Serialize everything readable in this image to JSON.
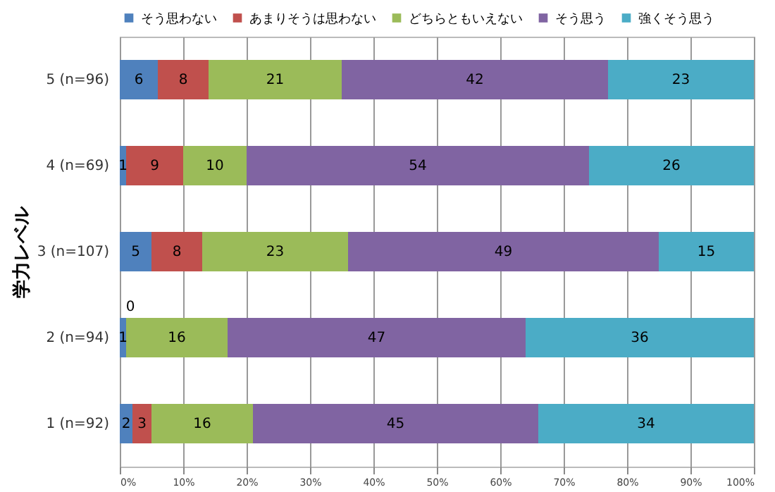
{
  "chart_data": {
    "type": "bar",
    "orientation": "horizontal",
    "stacked": true,
    "ylabel": "学力レベル",
    "categories": [
      "5 (n=96)",
      "4 (n=69)",
      "3 (n=107)",
      "2 (n=94)",
      "1 (n=92)"
    ],
    "series": [
      {
        "name": "そう思わない",
        "color": "#4f81bd",
        "values": [
          6,
          1,
          5,
          1,
          2
        ]
      },
      {
        "name": "あまりそうは思わない",
        "color": "#c0504d",
        "values": [
          8,
          9,
          8,
          0,
          3
        ],
        "value_labels": [
          "8",
          "9",
          "8",
          null,
          "3"
        ]
      },
      {
        "name": "どちらともいえない",
        "color": "#9bbb59",
        "values": [
          21,
          10,
          23,
          16,
          16
        ]
      },
      {
        "name": "そう思う",
        "color": "#8064a2",
        "values": [
          42,
          54,
          49,
          47,
          45
        ]
      },
      {
        "name": "強くそう思う",
        "color": "#4bacc6",
        "values": [
          23,
          26,
          15,
          36,
          34
        ]
      }
    ],
    "xlim": [
      0,
      100
    ],
    "xticks": [
      {
        "value": 0,
        "label": "0%"
      },
      {
        "value": 10,
        "label": "10%"
      },
      {
        "value": 20,
        "label": "20%"
      },
      {
        "value": 30,
        "label": "30%"
      },
      {
        "value": 40,
        "label": "40%"
      },
      {
        "value": 50,
        "label": "50%"
      },
      {
        "value": 60,
        "label": "60%"
      },
      {
        "value": 70,
        "label": "70%"
      },
      {
        "value": 80,
        "label": "80%"
      },
      {
        "value": 90,
        "label": "90%"
      },
      {
        "value": 100,
        "label": "100%"
      }
    ],
    "grid": "x",
    "legend": "top",
    "data_labels": true,
    "annotations": [
      {
        "text": "0",
        "x": 1,
        "y": "2 (n=94)"
      }
    ]
  }
}
